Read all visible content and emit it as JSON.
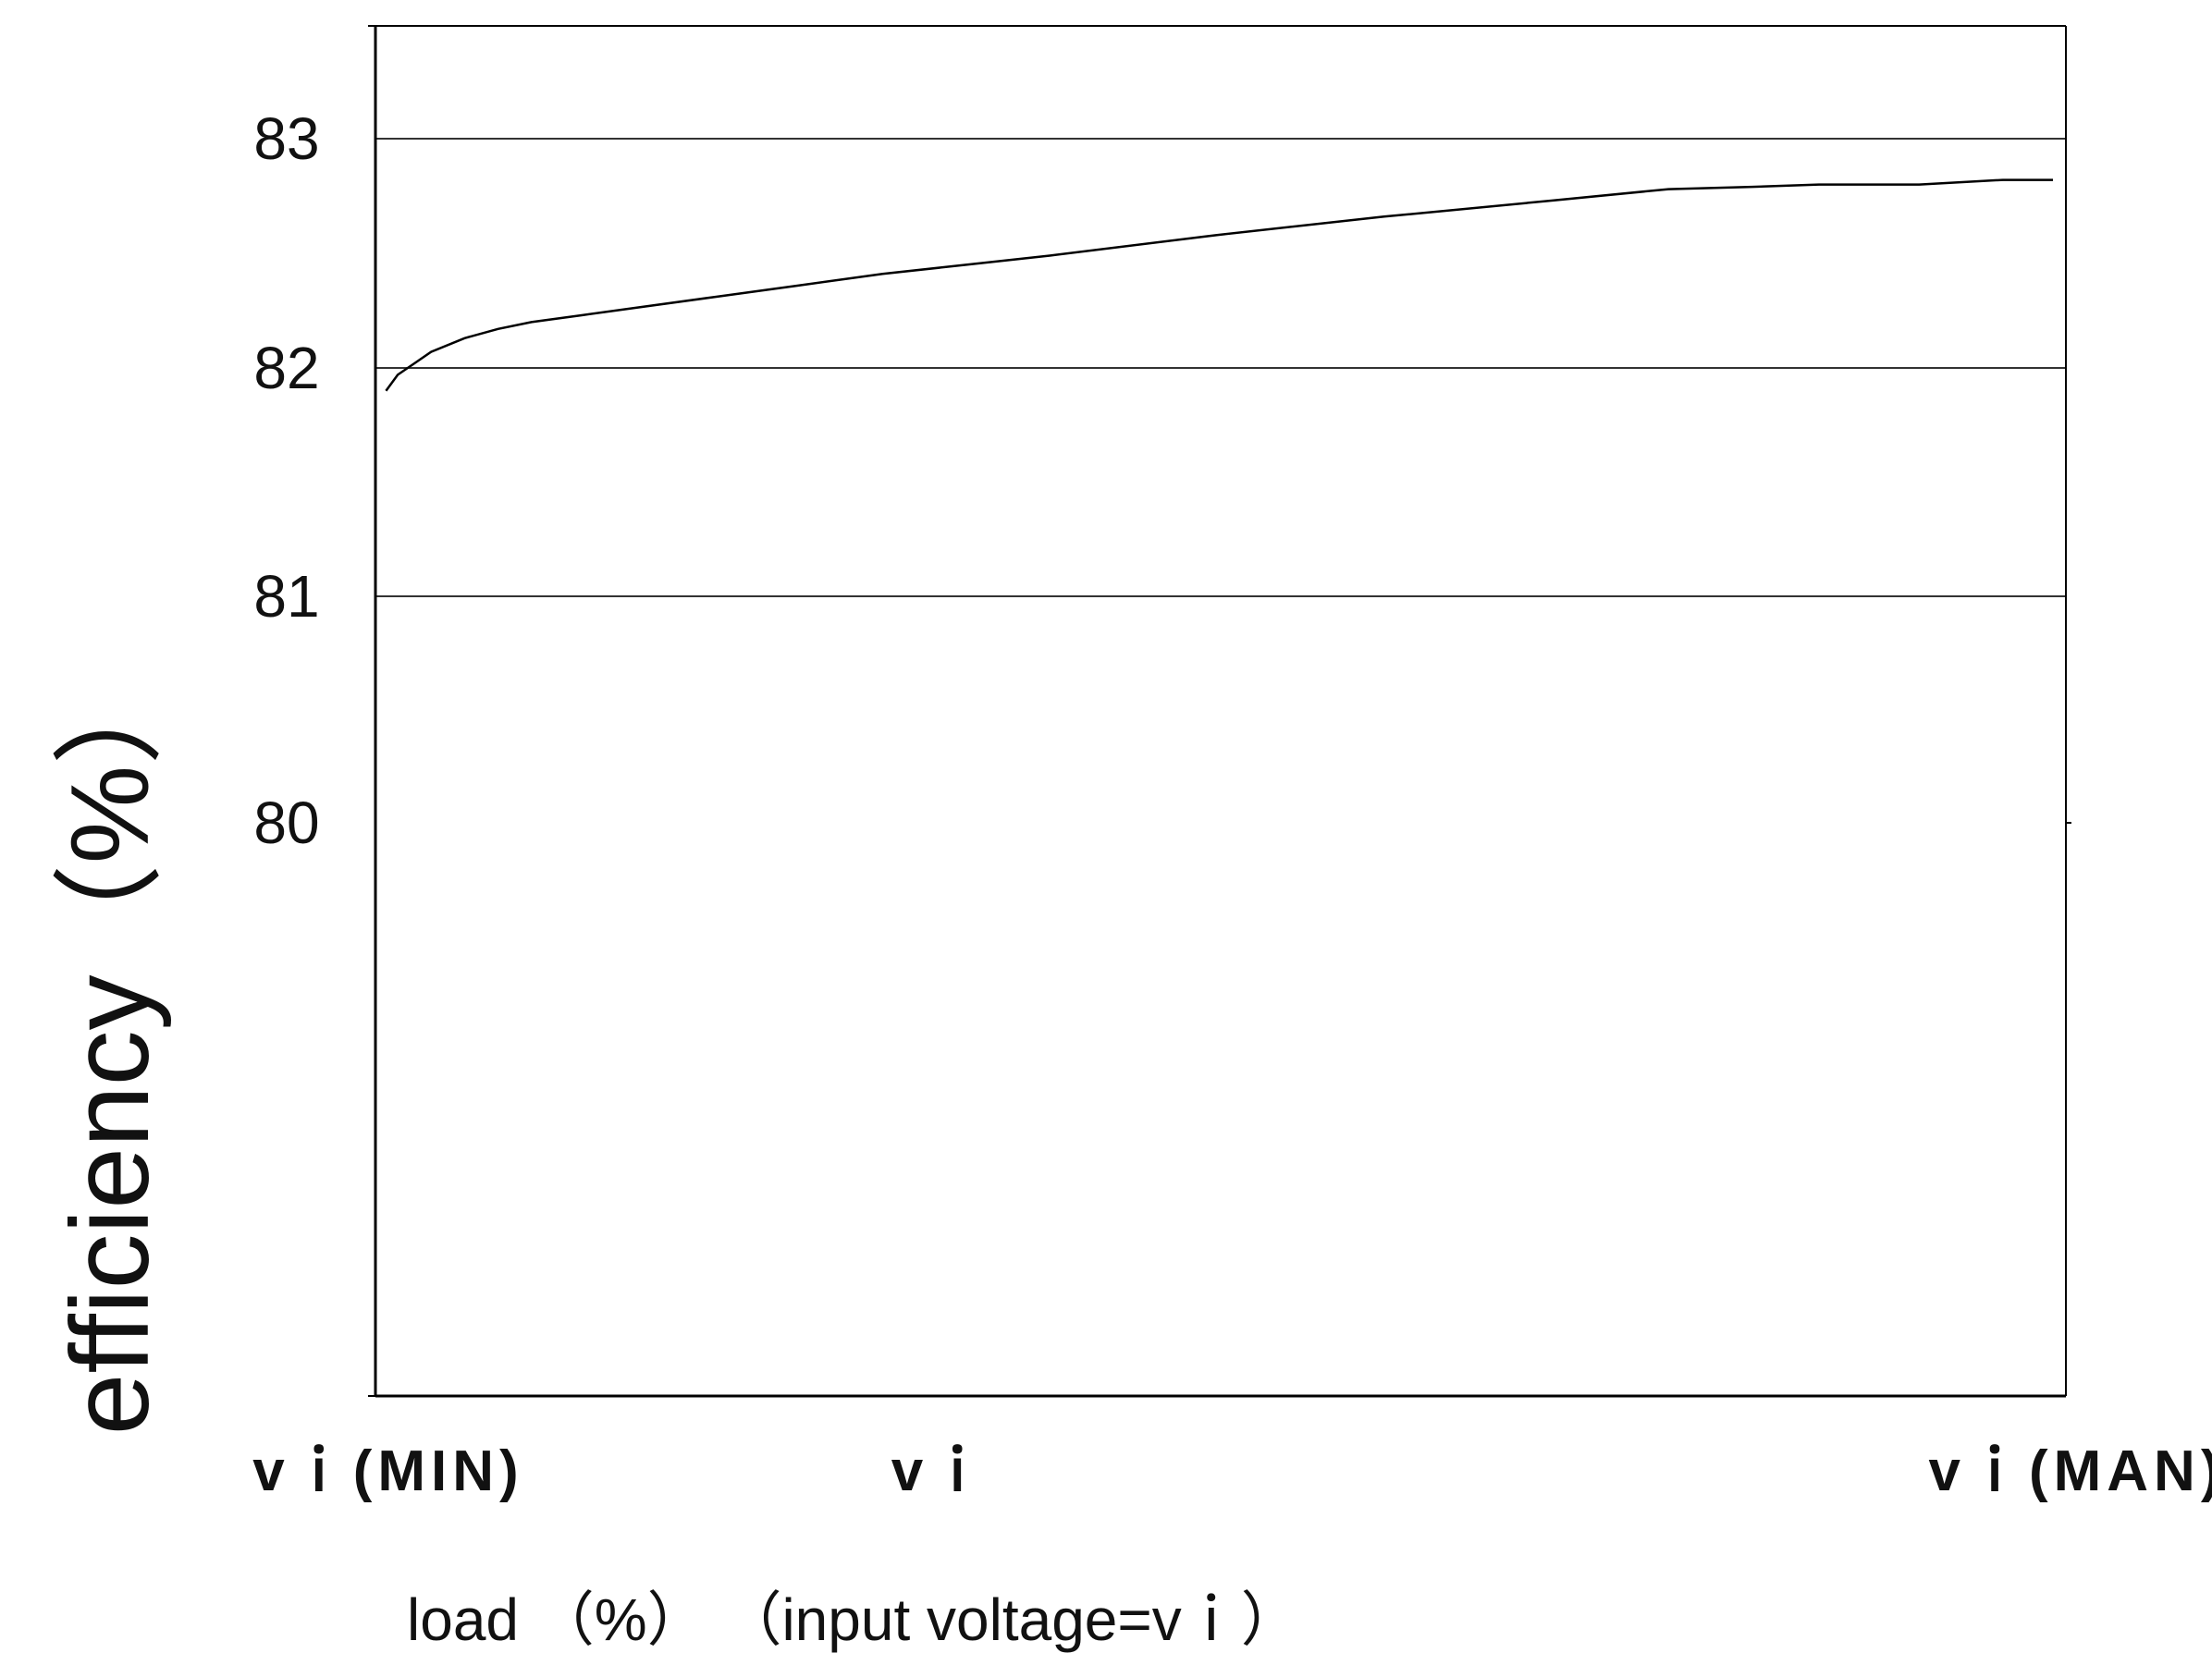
{
  "chart_data": {
    "type": "line",
    "ylabel": "efficiency（%）",
    "xlabel": "load （%） （input voltage=vｉ）",
    "x_ticks": [
      "vｉ(MIN)",
      "vｉ",
      "vｉ(MAN)"
    ],
    "y_ticks": [
      {
        "label": "83",
        "value": 83
      },
      {
        "label": "82",
        "value": 82
      },
      {
        "label": "81",
        "value": 81
      },
      {
        "label": "80",
        "value": 80
      }
    ],
    "gridlines": [
      83,
      82,
      81
    ],
    "ylim": [
      77,
      83.5
    ],
    "xlim": [
      0,
      100
    ],
    "grid": true,
    "legend": "none",
    "colors": {
      "line": "#000000",
      "axis": "#000000",
      "grid": "#333333"
    },
    "series": [
      {
        "x": [
          0.3,
          1,
          2,
          3,
          5,
          7,
          9,
          12,
          15,
          20,
          25,
          30,
          35,
          40,
          50,
          60,
          70,
          77,
          82,
          86,
          92,
          97,
          100
        ],
        "y": [
          81.9,
          81.97,
          82.02,
          82.07,
          82.13,
          82.17,
          82.2,
          82.23,
          82.26,
          82.31,
          82.36,
          82.41,
          82.45,
          82.49,
          82.58,
          82.66,
          82.73,
          82.78,
          82.79,
          82.8,
          82.8,
          82.82,
          82.82
        ]
      }
    ]
  }
}
